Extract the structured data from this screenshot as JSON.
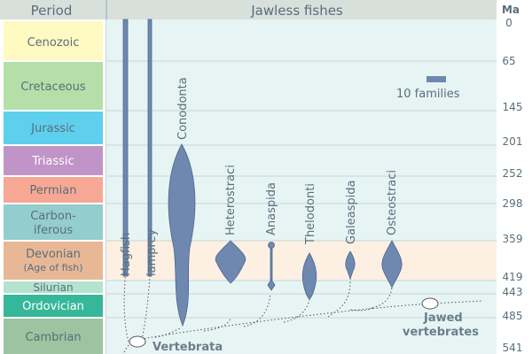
{
  "header": {
    "period_label": "Period",
    "title": "Jawless fishes",
    "ma_label": "Ma"
  },
  "periods": [
    {
      "name": "Cenozoic",
      "line2": "",
      "color": "#fffac2"
    },
    {
      "name": "Cretaceous",
      "line2": "",
      "color": "#b4dfa8"
    },
    {
      "name": "Jurassic",
      "line2": "",
      "color": "#5ed0ee"
    },
    {
      "name": "Triassic",
      "line2": "",
      "color": "#c194c8"
    },
    {
      "name": "Permian",
      "line2": "",
      "color": "#f6a894"
    },
    {
      "name": "Carbon-",
      "line2": "iferous",
      "color": "#93cdcd"
    },
    {
      "name": "Devonian",
      "line2": "(Age of fish)",
      "color": "#e8b896"
    },
    {
      "name": "Silurian",
      "line2": "",
      "color": "#b4e3d0"
    },
    {
      "name": "Ordovician",
      "line2": "",
      "color": "#37b79a"
    },
    {
      "name": "Cambrian",
      "line2": "",
      "color": "#9cc4a0"
    }
  ],
  "ages": [
    "0",
    "65",
    "145",
    "201",
    "252",
    "298",
    "359",
    "419",
    "443",
    "485",
    "541"
  ],
  "groups": [
    {
      "name": "Hagfish"
    },
    {
      "name": "lamprey"
    },
    {
      "name": "Conodonta"
    },
    {
      "name": "Heterostraci"
    },
    {
      "name": "Anaspida"
    },
    {
      "name": "Thelodonti"
    },
    {
      "name": "Galeaspida"
    },
    {
      "name": "Osteostraci"
    }
  ],
  "legend": {
    "label": "10 families"
  },
  "labels": {
    "vertebrata": "Vertebrata",
    "jawed_line1": "Jawed",
    "jawed_line2": "vertebrates"
  },
  "colors": {
    "shape": "#6f88b0",
    "stroke": "#4e6790",
    "header_bg": "#d8e0dc",
    "chart_bg": "#e6f4f4",
    "devonian_band": "#fdf0e2",
    "text": "#5a6e7a"
  }
}
